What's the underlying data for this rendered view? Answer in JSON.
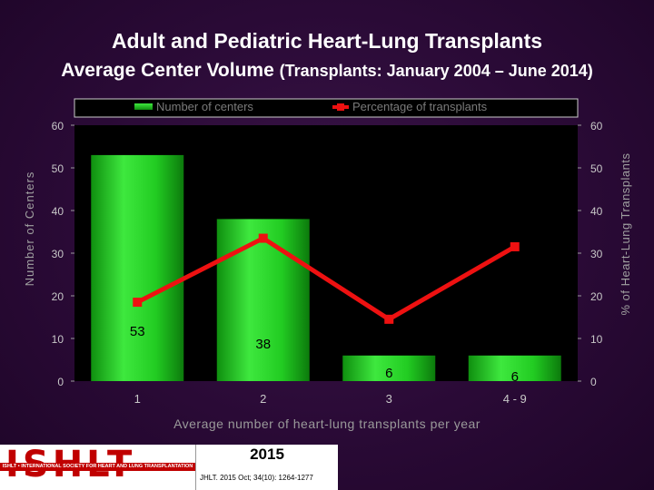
{
  "header": {
    "title": "Adult and Pediatric Heart-Lung Transplants",
    "subtitle": "Average Center Volume",
    "subtitle_note": "(Transplants: January 2004 – June 2014)"
  },
  "chart_data": {
    "type": "bar",
    "categories": [
      "1",
      "2",
      "3",
      "4 - 9"
    ],
    "series": [
      {
        "name": "Number of centers",
        "type": "bar",
        "axis": "left",
        "values": [
          53,
          38,
          6,
          6
        ],
        "data_labels": [
          "53",
          "38",
          "6",
          "6"
        ]
      },
      {
        "name": "Percentage of transplants",
        "type": "line",
        "axis": "right",
        "values": [
          18.5,
          33.5,
          14.5,
          31.5
        ]
      }
    ],
    "xlabel": "Average number of heart-lung transplants per year",
    "ylabel": "Number of Centers",
    "y2label": "% of Heart-Lung Transplants",
    "ylim": [
      0,
      60
    ],
    "y2lim": [
      0,
      60
    ],
    "yticks": [
      "0",
      "10",
      "20",
      "30",
      "40",
      "50",
      "60"
    ],
    "y2ticks": [
      "0",
      "10",
      "20",
      "30",
      "40",
      "50",
      "60"
    ],
    "legend": {
      "position": "top"
    },
    "colors": {
      "bar": "#22cc22",
      "line": "#ee1111",
      "plot_bg": "#000000",
      "text": "#c8c8c8"
    }
  },
  "footer": {
    "logo_text": "ISHLT",
    "logo_subtitle": "ISHLT • INTERNATIONAL SOCIETY FOR HEART AND LUNG TRANSPLANTATION",
    "year": "2015",
    "citation": "JHLT. 2015 Oct; 34(10): 1264-1277"
  }
}
